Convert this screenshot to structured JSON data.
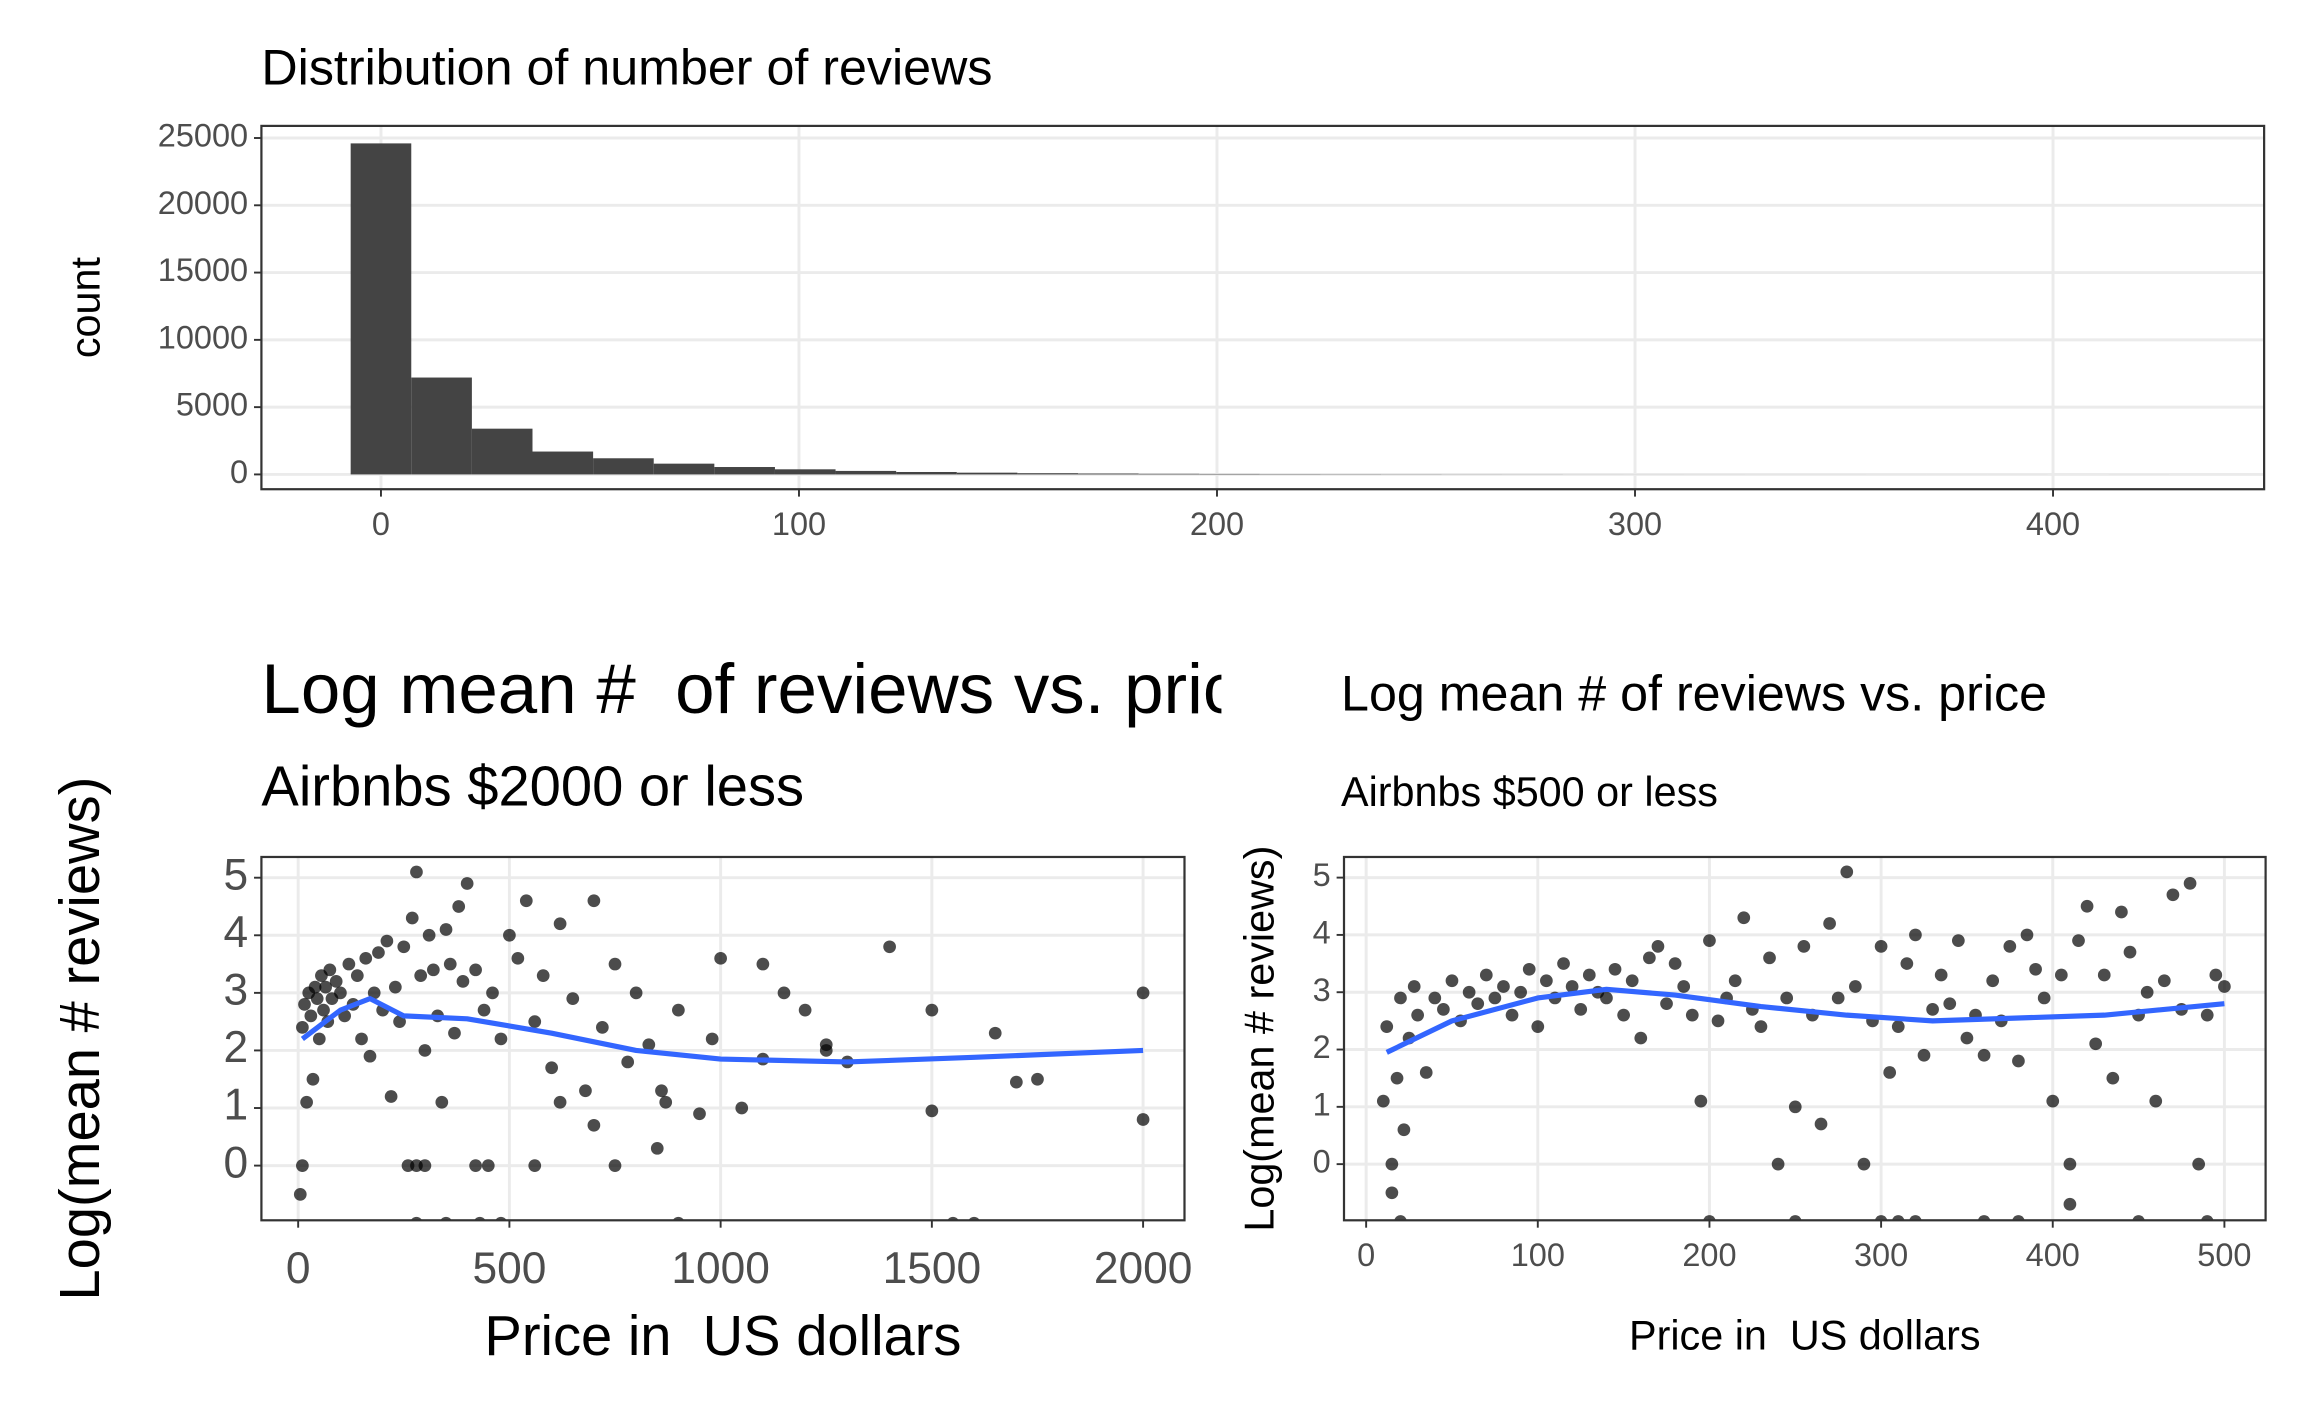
{
  "chart_data": [
    {
      "type": "histogram",
      "title": "Distribution of number of reviews",
      "y_label": "count",
      "bins": [
        -7.25,
        7.25,
        21.75,
        36.25,
        50.75,
        65.25,
        79.75,
        94.25,
        108.75,
        123.25,
        137.75,
        152.25,
        166.75,
        181.25,
        195.75,
        210.25,
        224.75,
        239.25,
        253.75,
        268.25,
        282.75,
        297.25,
        311.75,
        326.25,
        340.75,
        355.25,
        369.75,
        384.25,
        398.75,
        413.25,
        427.75
      ],
      "values": [
        24600,
        7200,
        3400,
        1700,
        1200,
        800,
        550,
        380,
        260,
        180,
        130,
        90,
        65,
        45,
        35,
        25,
        20,
        15,
        10,
        8,
        5,
        4,
        3,
        2,
        2,
        1,
        1,
        1,
        0,
        1
      ],
      "color": "#444444",
      "xlim": [
        -28.6,
        450.5
      ],
      "xticks": [
        0,
        100,
        200,
        300,
        400
      ],
      "ylim": [
        -1100,
        25900
      ],
      "yticks": [
        0,
        5000,
        10000,
        15000,
        20000,
        25000
      ],
      "grid": true
    },
    {
      "type": "scatter",
      "title": "Log mean #  of reviews vs. price",
      "subtitle": "Airbnbs $2000 or less",
      "x_label": "Price in  US dollars",
      "y_label": "Log(mean # reviews)",
      "series": [
        {
          "color": "#000000",
          "x": [
            10,
            15,
            20,
            25,
            30,
            35,
            40,
            45,
            50,
            55,
            60,
            65,
            70,
            75,
            80,
            90,
            100,
            110,
            120,
            130,
            140,
            150,
            160,
            170,
            180,
            190,
            200,
            210,
            220,
            230,
            240,
            250,
            260,
            270,
            280,
            290,
            300,
            310,
            320,
            330,
            340,
            350,
            360,
            370,
            380,
            390,
            400,
            420,
            440,
            460,
            480,
            500,
            520,
            540,
            560,
            580,
            600,
            620,
            650,
            680,
            700,
            720,
            750,
            780,
            800,
            830,
            860,
            900,
            950,
            980,
            1000,
            1050,
            1100,
            1150,
            1200,
            1250,
            1300,
            1400,
            1500,
            1650,
            1700,
            1750,
            2000,
            2000,
            5,
            10,
            280,
            300,
            420,
            450,
            560,
            620,
            700,
            750,
            850,
            870,
            1100,
            1250,
            1500,
            1550,
            1600,
            280,
            350,
            430,
            480,
            900
          ],
          "values": [
            2.4,
            2.8,
            1.1,
            3.0,
            2.6,
            1.5,
            3.1,
            2.9,
            2.2,
            3.3,
            2.7,
            3.1,
            2.5,
            3.4,
            2.9,
            3.2,
            3.0,
            2.6,
            3.5,
            2.8,
            3.3,
            2.2,
            3.6,
            1.9,
            3.0,
            3.7,
            2.7,
            3.9,
            1.2,
            3.1,
            2.5,
            3.8,
            0.0,
            4.3,
            5.1,
            3.3,
            2.0,
            4.0,
            3.4,
            2.6,
            1.1,
            4.1,
            3.5,
            2.3,
            4.5,
            3.2,
            4.9,
            3.4,
            2.7,
            3.0,
            2.2,
            4.0,
            3.6,
            4.6,
            2.5,
            3.3,
            1.7,
            4.2,
            2.9,
            1.3,
            4.6,
            2.4,
            3.5,
            1.8,
            3.0,
            2.1,
            1.3,
            2.7,
            0.9,
            2.2,
            3.6,
            1.0,
            3.5,
            3.0,
            2.7,
            2.0,
            1.8,
            3.8,
            0.95,
            2.3,
            1.45,
            1.5,
            3.0,
            0.8,
            -0.5,
            0.0,
            0.0,
            0.0,
            0.0,
            0.0,
            0.0,
            1.1,
            0.7,
            0.0,
            0.3,
            1.1,
            1.85,
            2.1,
            2.7,
            -1,
            -1,
            -1,
            -1,
            -1,
            -1,
            -1
          ]
        }
      ],
      "smooth": {
        "color": "#3366ff",
        "x": [
          10,
          100,
          170,
          250,
          400,
          600,
          800,
          1000,
          1300,
          1600,
          2000
        ],
        "values": [
          2.2,
          2.7,
          2.9,
          2.6,
          2.55,
          2.3,
          2.0,
          1.85,
          1.8,
          1.88,
          2.0
        ]
      },
      "xlim": [
        -87,
        2098
      ],
      "xticks": [
        0,
        500,
        1000,
        1500,
        2000
      ],
      "ylim": [
        -0.95,
        5.36
      ],
      "yticks": [
        0,
        1,
        2,
        3,
        4,
        5
      ],
      "grid": true
    },
    {
      "type": "scatter",
      "title": "Log mean # of reviews vs. price",
      "subtitle": "Airbnbs $500 or less",
      "x_label": "Price in  US dollars",
      "y_label": "Log(mean # reviews)",
      "series": [
        {
          "color": "#000000",
          "x": [
            10,
            12,
            15,
            18,
            20,
            22,
            25,
            28,
            30,
            35,
            40,
            45,
            50,
            55,
            60,
            65,
            70,
            75,
            80,
            85,
            90,
            95,
            100,
            105,
            110,
            115,
            120,
            125,
            130,
            135,
            140,
            145,
            150,
            155,
            160,
            165,
            170,
            175,
            180,
            185,
            190,
            195,
            200,
            205,
            210,
            215,
            220,
            225,
            230,
            235,
            240,
            245,
            250,
            255,
            260,
            265,
            270,
            275,
            280,
            285,
            290,
            295,
            300,
            305,
            310,
            315,
            320,
            325,
            330,
            335,
            340,
            345,
            350,
            355,
            360,
            365,
            370,
            375,
            380,
            385,
            390,
            395,
            400,
            405,
            410,
            415,
            420,
            425,
            430,
            435,
            440,
            445,
            450,
            455,
            460,
            465,
            470,
            475,
            480,
            485,
            490,
            495,
            500,
            15,
            20,
            200,
            250,
            300,
            310,
            320,
            360,
            380,
            410,
            450,
            490
          ],
          "values": [
            1.1,
            2.4,
            0.0,
            1.5,
            2.9,
            0.6,
            2.2,
            3.1,
            2.6,
            1.6,
            2.9,
            2.7,
            3.2,
            2.5,
            3.0,
            2.8,
            3.3,
            2.9,
            3.1,
            2.6,
            3.0,
            3.4,
            2.4,
            3.2,
            2.9,
            3.5,
            3.1,
            2.7,
            3.3,
            3.0,
            2.9,
            3.4,
            2.6,
            3.2,
            2.2,
            3.6,
            3.8,
            2.8,
            3.5,
            3.1,
            2.6,
            1.1,
            3.9,
            2.5,
            2.9,
            3.2,
            4.3,
            2.7,
            2.4,
            3.6,
            0.0,
            2.9,
            1.0,
            3.8,
            2.6,
            0.7,
            4.2,
            2.9,
            5.1,
            3.1,
            0.0,
            2.5,
            3.8,
            1.6,
            2.4,
            3.5,
            4.0,
            1.9,
            2.7,
            3.3,
            2.8,
            3.9,
            2.2,
            2.6,
            1.9,
            3.2,
            2.5,
            3.8,
            1.8,
            4.0,
            3.4,
            2.9,
            1.1,
            3.3,
            0.0,
            3.9,
            4.5,
            2.1,
            3.3,
            1.5,
            4.4,
            3.7,
            2.6,
            3.0,
            1.1,
            3.2,
            4.7,
            2.7,
            4.9,
            0.0,
            2.6,
            3.3,
            3.1,
            -0.5,
            -1,
            -1,
            -1,
            -1,
            -1,
            -1,
            -1,
            -1,
            -0.7,
            -1,
            -1
          ]
        }
      ],
      "smooth": {
        "color": "#3366ff",
        "x": [
          12,
          50,
          100,
          140,
          180,
          230,
          280,
          330,
          380,
          430,
          500
        ],
        "values": [
          1.95,
          2.5,
          2.9,
          3.05,
          2.95,
          2.75,
          2.6,
          2.5,
          2.55,
          2.6,
          2.8
        ]
      },
      "xlim": [
        -12.9,
        524
      ],
      "xticks": [
        0,
        100,
        200,
        300,
        400,
        500
      ],
      "ylim": [
        -0.98,
        5.36
      ],
      "yticks": [
        0,
        1,
        2,
        3,
        4,
        5
      ],
      "grid": true
    }
  ]
}
